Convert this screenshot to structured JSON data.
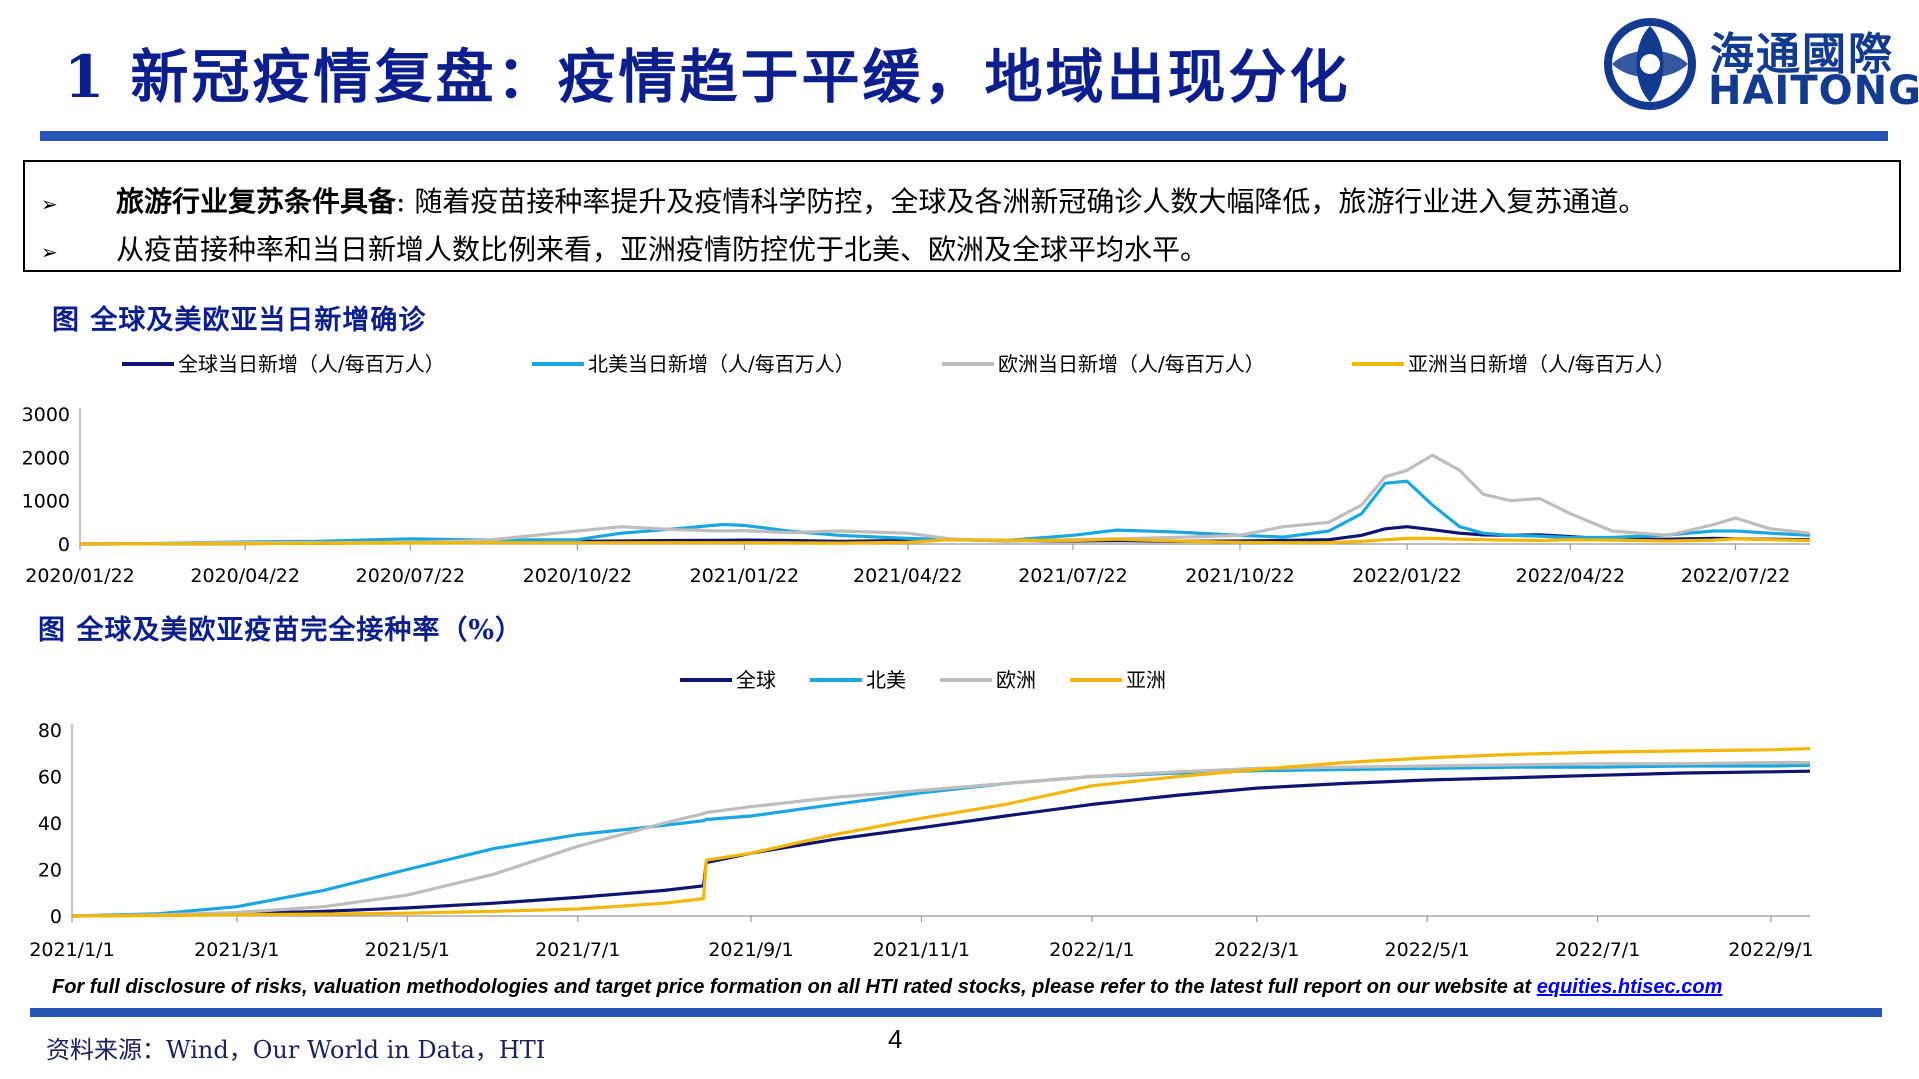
{
  "header": {
    "title": "1 新冠疫情复盘：疫情趋于平缓，地域出现分化"
  },
  "logo": {
    "cn": "海通國際",
    "en": "HAITONG",
    "icon": "haitong-logo-icon",
    "color": "#123a8f"
  },
  "bullets": [
    {
      "bold": "旅游行业复苏条件具备",
      "text": ":  随着疫苗接种率提升及疫情科学防控，全球及各洲新冠确诊人数大幅降低，旅游行业进入复苏通道。"
    },
    {
      "bold": "",
      "text": "从疫苗接种率和当日新增人数比例来看，亚洲疫情防控优于北美、欧洲及全球平均水平。"
    }
  ],
  "colors": {
    "global": "#0f1470",
    "north_america": "#1aa7e0",
    "europe": "#bdbdbd",
    "asia": "#f2b705",
    "accent": "#2455b5"
  },
  "chart_data": [
    {
      "type": "line",
      "title": "图 全球及美欧亚当日新增确诊",
      "xlabel": "",
      "ylabel": "",
      "ylim": [
        0,
        3000
      ],
      "yticks": [
        0,
        1000,
        2000,
        3000
      ],
      "xticks": [
        "2020/01/22",
        "2020/04/22",
        "2020/07/22",
        "2020/10/22",
        "2021/01/22",
        "2021/04/22",
        "2021/07/22",
        "2021/10/22",
        "2022/01/22",
        "2022/04/22",
        "2022/07/22"
      ],
      "x": [
        "2020/01/22",
        "2020/03/01",
        "2020/04/22",
        "2020/06/01",
        "2020/07/22",
        "2020/09/01",
        "2020/10/22",
        "2020/11/15",
        "2020/12/15",
        "2021/01/10",
        "2021/01/22",
        "2021/02/15",
        "2021/03/15",
        "2021/04/22",
        "2021/05/15",
        "2021/06/15",
        "2021/07/22",
        "2021/08/15",
        "2021/09/15",
        "2021/10/22",
        "2021/11/15",
        "2021/12/10",
        "2021/12/28",
        "2022/01/10",
        "2022/01/22",
        "2022/02/05",
        "2022/02/20",
        "2022/03/05",
        "2022/03/20",
        "2022/04/05",
        "2022/04/22",
        "2022/05/15",
        "2022/06/15",
        "2022/07/10",
        "2022/07/22",
        "2022/08/10",
        "2022/09/01"
      ],
      "legend_position": "top",
      "grid": false,
      "series": [
        {
          "name": "全球当日新增（人/每百万人）",
          "color": "#0f1470",
          "values": [
            0,
            2,
            10,
            20,
            30,
            40,
            60,
            70,
            80,
            85,
            90,
            80,
            60,
            80,
            100,
            80,
            70,
            80,
            60,
            70,
            80,
            100,
            200,
            350,
            400,
            330,
            250,
            210,
            200,
            210,
            170,
            110,
            110,
            130,
            120,
            110,
            100
          ]
        },
        {
          "name": "北美当日新增（人/每百万人）",
          "color": "#1aa7e0",
          "values": [
            0,
            10,
            50,
            60,
            120,
            90,
            100,
            250,
            350,
            450,
            430,
            300,
            200,
            130,
            100,
            80,
            200,
            320,
            280,
            200,
            160,
            300,
            700,
            1400,
            1450,
            900,
            400,
            250,
            200,
            180,
            150,
            150,
            210,
            300,
            300,
            250,
            200
          ]
        },
        {
          "name": "欧洲当日新增（人/每百万人）",
          "color": "#bdbdbd",
          "values": [
            0,
            5,
            40,
            30,
            40,
            80,
            300,
            400,
            330,
            300,
            310,
            260,
            300,
            250,
            120,
            60,
            100,
            120,
            150,
            200,
            400,
            500,
            900,
            1550,
            1700,
            2050,
            1700,
            1150,
            1000,
            1050,
            700,
            300,
            200,
            450,
            600,
            350,
            250
          ]
        },
        {
          "name": "亚洲当日新增（人/每百万人）",
          "color": "#f2b705",
          "values": [
            0,
            5,
            10,
            15,
            25,
            30,
            30,
            30,
            30,
            30,
            30,
            25,
            20,
            40,
            100,
            90,
            80,
            110,
            70,
            40,
            30,
            30,
            60,
            100,
            130,
            130,
            110,
            100,
            90,
            80,
            100,
            90,
            70,
            90,
            120,
            100,
            80
          ]
        }
      ]
    },
    {
      "type": "line",
      "title": "图 全球及美欧亚疫苗完全接种率（%）",
      "xlabel": "",
      "ylabel": "",
      "ylim": [
        0,
        80
      ],
      "yticks": [
        0,
        20,
        40,
        60,
        80
      ],
      "xticks": [
        "2021/1/1",
        "2021/3/1",
        "2021/5/1",
        "2021/7/1",
        "2021/9/1",
        "2021/11/1",
        "2022/1/1",
        "2022/3/1",
        "2022/5/1",
        "2022/7/1",
        "2022/9/1"
      ],
      "x": [
        "2021/1/1",
        "2021/2/1",
        "2021/3/1",
        "2021/4/1",
        "2021/5/1",
        "2021/6/1",
        "2021/7/1",
        "2021/8/1",
        "2021/8/15",
        "2021/8/16",
        "2021/9/1",
        "2021/10/1",
        "2021/11/1",
        "2021/12/1",
        "2022/1/1",
        "2022/2/1",
        "2022/3/1",
        "2022/4/1",
        "2022/5/1",
        "2022/6/1",
        "2022/7/1",
        "2022/8/1",
        "2022/9/1",
        "2022/9/15"
      ],
      "legend_position": "top",
      "grid": false,
      "series": [
        {
          "name": "全球",
          "color": "#0f1470",
          "values": [
            0,
            0.3,
            1,
            2,
            3.5,
            5.5,
            8,
            11,
            13,
            23,
            27,
            33,
            38,
            43,
            48,
            52,
            55,
            57,
            58.5,
            59.5,
            60.5,
            61.5,
            62,
            62.3
          ]
        },
        {
          "name": "北美",
          "color": "#1aa7e0",
          "values": [
            0,
            1,
            4,
            11,
            20,
            29,
            35,
            39,
            41,
            41.5,
            43,
            48,
            53,
            57,
            60,
            61.5,
            62.5,
            63,
            63.5,
            64,
            64,
            64.5,
            64.5,
            64.8
          ]
        },
        {
          "name": "欧洲",
          "color": "#bdbdbd",
          "values": [
            0,
            0.5,
            1.5,
            4,
            9,
            18,
            30,
            40,
            44,
            44.5,
            47,
            51,
            54,
            57,
            60,
            62,
            63.5,
            64,
            64.5,
            65,
            65.5,
            65.5,
            66,
            66
          ]
        },
        {
          "name": "亚洲",
          "color": "#f2b705",
          "values": [
            0,
            0.2,
            0.5,
            0.8,
            1.2,
            2,
            3,
            5.5,
            7.5,
            24,
            27,
            35,
            42,
            48,
            56,
            60,
            63,
            66,
            68,
            69.5,
            70.5,
            71,
            71.5,
            72
          ]
        }
      ]
    }
  ],
  "footer": {
    "disclaimer": "For full disclosure of risks, valuation methodologies and target price formation on all HTI rated stocks, please refer to the latest full report on our website at ",
    "link": "equities.htisec.com",
    "source": "资料来源：Wind，Our World in Data，HTI",
    "page": "4"
  }
}
